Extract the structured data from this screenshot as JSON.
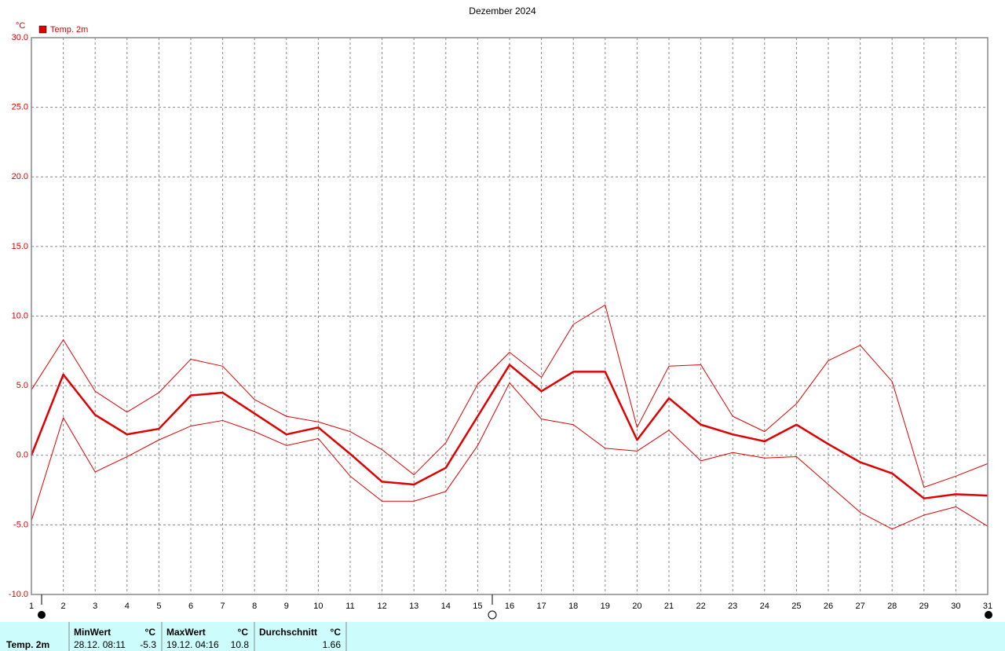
{
  "chart_data": {
    "type": "line",
    "title": "Dezember 2024",
    "y_label": "°C",
    "color": "#e00000",
    "x": [
      1,
      2,
      3,
      4,
      5,
      6,
      7,
      8,
      9,
      10,
      11,
      12,
      13,
      14,
      15,
      16,
      17,
      18,
      19,
      20,
      21,
      22,
      23,
      24,
      25,
      26,
      27,
      28,
      29,
      30,
      31
    ],
    "xlim": [
      1,
      31
    ],
    "xticks": [
      1,
      2,
      3,
      4,
      5,
      6,
      7,
      8,
      9,
      10,
      11,
      12,
      13,
      14,
      15,
      16,
      17,
      18,
      19,
      20,
      21,
      22,
      23,
      24,
      25,
      26,
      27,
      28,
      29,
      30,
      31
    ],
    "ylim": [
      -10,
      30
    ],
    "yticks": [
      {
        "value": -10,
        "label": "-10.0"
      },
      {
        "value": -5,
        "label": "-5.0"
      },
      {
        "value": 0,
        "label": "0.0"
      },
      {
        "value": 5,
        "label": "5.0"
      },
      {
        "value": 10,
        "label": "10.0"
      },
      {
        "value": 15,
        "label": "15.0"
      },
      {
        "value": 20,
        "label": "20.0"
      },
      {
        "value": 25,
        "label": "25.0"
      },
      {
        "value": 30,
        "label": "30.0"
      }
    ],
    "grid": true,
    "series": [
      {
        "name": "Temp. 2m",
        "color": "#e00000",
        "values": [
          0,
          5.8,
          2.9,
          1.5,
          1.9,
          4.3,
          4.5,
          3.0,
          1.5,
          2.0,
          0.1,
          -1.9,
          -2.1,
          -0.9,
          2.8,
          6.5,
          4.6,
          6.0,
          6.0,
          1.1,
          4.1,
          2.2,
          1.5,
          1.0,
          2.2,
          0.8,
          -0.5,
          -1.3,
          -3.1,
          -2.8,
          -2.9
        ],
        "max": [
          4.7,
          8.3,
          4.6,
          3.1,
          4.5,
          6.9,
          6.4,
          4.0,
          2.8,
          2.4,
          1.7,
          0.4,
          -1.4,
          0.9,
          5.1,
          7.4,
          5.6,
          9.4,
          10.8,
          2.0,
          6.4,
          6.5,
          2.8,
          1.7,
          3.7,
          6.8,
          7.9,
          5.3,
          -2.3,
          -1.5,
          -0.6
        ],
        "min": [
          -4.7,
          2.7,
          -1.2,
          -0.1,
          1.1,
          2.1,
          2.5,
          1.7,
          0.7,
          1.2,
          -1.5,
          -3.3,
          -3.3,
          -2.6,
          0.7,
          5.2,
          2.6,
          2.2,
          0.5,
          0.3,
          1.8,
          -0.4,
          0.2,
          -0.2,
          -0.1,
          -2.1,
          -4.1,
          -5.3,
          -4.3,
          -3.7,
          -5.1
        ]
      }
    ],
    "summary": {
      "row_label": "Temp. 2m",
      "min": {
        "label": "MinWert",
        "unit": "°C",
        "time": "28.12.  08:11",
        "value": -5.3
      },
      "max": {
        "label": "MaxWert",
        "unit": "°C",
        "time": "19.12.  04:16",
        "value": 10.8
      },
      "avg": {
        "label": "Durchschnitt",
        "unit": "°C",
        "value": 1.66
      }
    }
  }
}
